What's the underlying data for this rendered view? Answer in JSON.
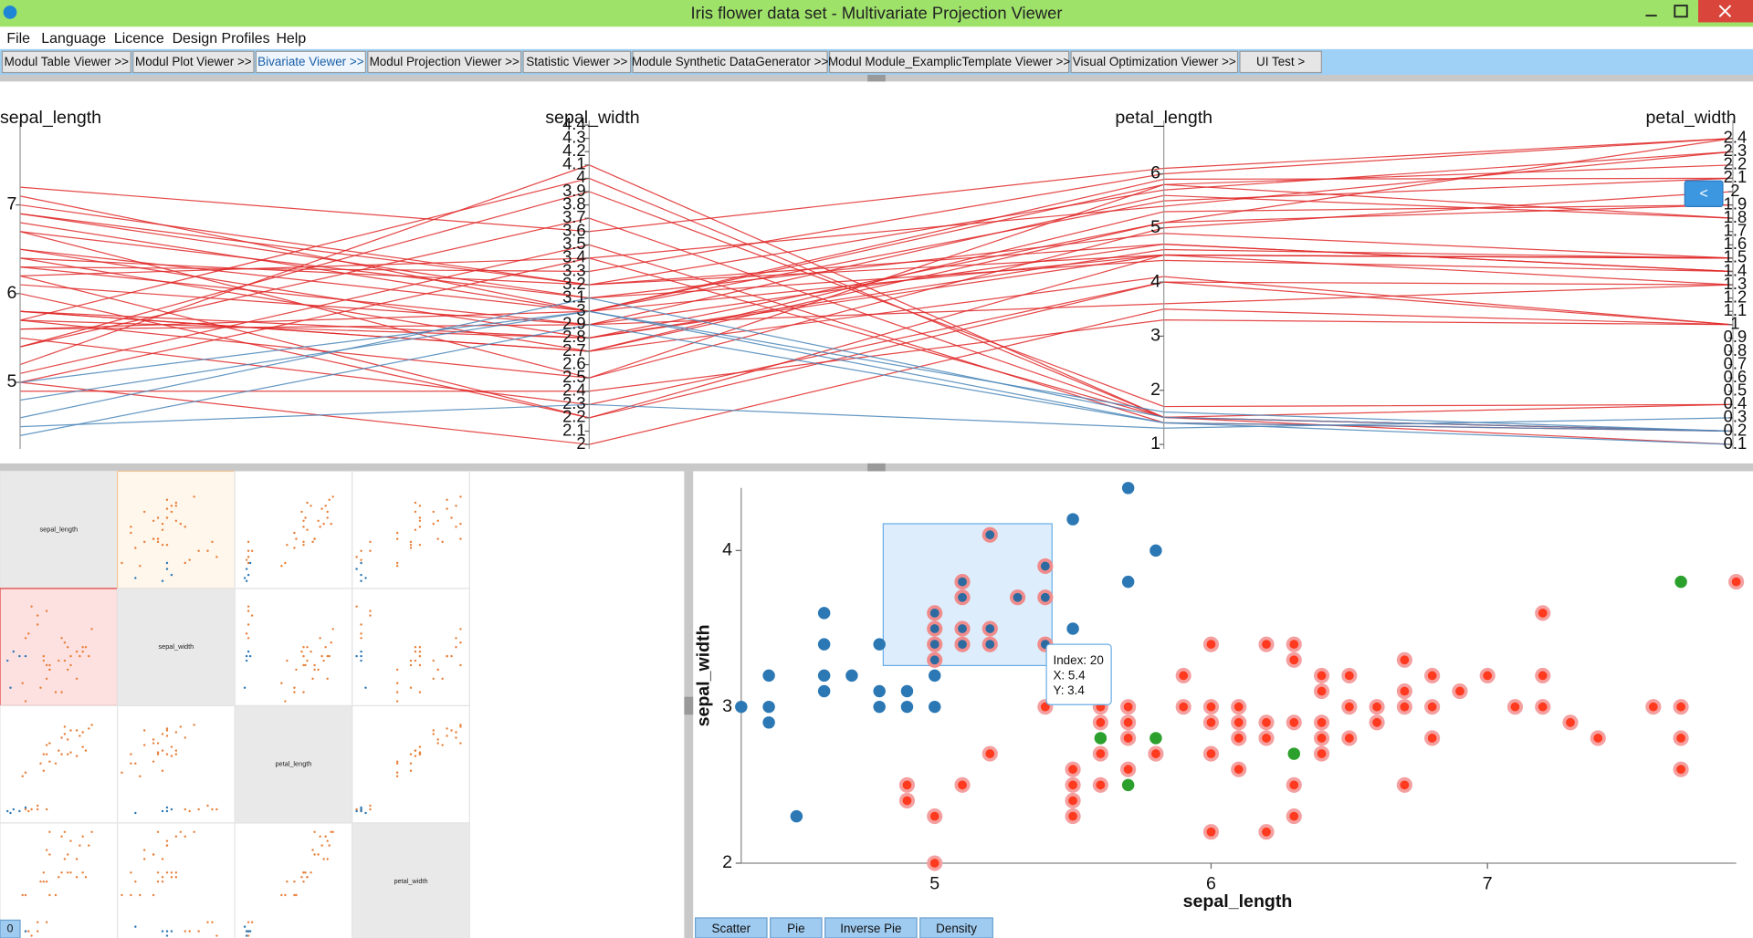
{
  "window": {
    "title": "Iris flower data set - Multivariate Projection Viewer"
  },
  "menu": [
    "File",
    "Language",
    "Licence",
    "Design Profiles",
    "Help"
  ],
  "tabs": [
    "Modul Table Viewer >>",
    "Modul Plot Viewer >>",
    "Bivariate Viewer >>",
    "Modul Projection Viewer >>",
    "Statistic Viewer >>",
    "Module Synthetic DataGenerator >>",
    "Modul Module_ExamplicTemplate Viewer >>",
    "Visual Optimization Viewer >>",
    "UI Test >"
  ],
  "parallel": {
    "type": "parallel",
    "axes": [
      {
        "name": "sepal_length",
        "lim": [
          4.3,
          7.9
        ],
        "ticks": [
          5,
          6,
          7
        ]
      },
      {
        "name": "sepal_width",
        "lim": [
          2,
          4.4
        ],
        "ticks": [
          2,
          2.1,
          2.2,
          2.3,
          2.4,
          2.5,
          2.6,
          2.7,
          2.8,
          2.9,
          3,
          3.1,
          3.2,
          3.3,
          3.4,
          3.5,
          3.6,
          3.7,
          3.8,
          3.9,
          4,
          4.1,
          4.2,
          4.3,
          4.4
        ]
      },
      {
        "name": "petal_length",
        "lim": [
          1,
          6.9
        ],
        "ticks": [
          1,
          2,
          3,
          4,
          5,
          6
        ]
      },
      {
        "name": "petal_width",
        "lim": [
          0.1,
          2.5
        ],
        "ticks": [
          0.1,
          0.2,
          0.3,
          0.4,
          0.5,
          0.6,
          0.7,
          0.8,
          0.9,
          1,
          1.1,
          1.2,
          1.3,
          1.4,
          1.5,
          1.6,
          1.7,
          1.8,
          1.9,
          2,
          2.1,
          2.2,
          2.3,
          2.4
        ]
      }
    ],
    "series": [
      {
        "color": "#e02828",
        "matrix_color": "#e8803a",
        "lines": [
          [
            7.0,
            3.2,
            4.7,
            1.4
          ],
          [
            6.4,
            3.2,
            4.5,
            1.5
          ],
          [
            6.9,
            3.1,
            4.9,
            1.5
          ],
          [
            5.5,
            2.3,
            4.0,
            1.3
          ],
          [
            6.5,
            2.8,
            4.6,
            1.5
          ],
          [
            5.7,
            2.8,
            4.5,
            1.3
          ],
          [
            6.3,
            3.3,
            6.0,
            2.4
          ],
          [
            5.8,
            2.7,
            5.1,
            1.9
          ],
          [
            7.1,
            3.0,
            5.9,
            2.1
          ],
          [
            6.3,
            2.9,
            5.6,
            1.8
          ],
          [
            6.5,
            3.0,
            5.8,
            2.2
          ],
          [
            6.7,
            2.5,
            5.8,
            1.8
          ],
          [
            7.2,
            3.6,
            6.1,
            2.4
          ],
          [
            6.4,
            2.7,
            5.3,
            1.9
          ],
          [
            6.8,
            3.0,
            5.5,
            2.1
          ],
          [
            5.7,
            2.5,
            5.0,
            2.0
          ],
          [
            5.8,
            2.8,
            5.1,
            2.4
          ],
          [
            6.0,
            2.2,
            4.0,
            1.0
          ],
          [
            6.1,
            2.9,
            4.7,
            1.4
          ],
          [
            5.6,
            2.9,
            3.6,
            1.3
          ],
          [
            6.7,
            3.1,
            4.4,
            1.4
          ],
          [
            5.6,
            3.0,
            4.5,
            1.5
          ],
          [
            5.8,
            2.7,
            4.1,
            1.0
          ],
          [
            6.2,
            2.2,
            4.5,
            1.5
          ],
          [
            5.0,
            2.0,
            3.5,
            1.0
          ],
          [
            4.9,
            2.4,
            3.3,
            1.0
          ],
          [
            5.1,
            3.5,
            1.4,
            0.2
          ],
          [
            5.4,
            3.9,
            1.7,
            0.4
          ],
          [
            5.0,
            3.4,
            1.5,
            0.2
          ],
          [
            5.4,
            3.7,
            1.5,
            0.2
          ],
          [
            5.7,
            4.0,
            1.5,
            0.4
          ],
          [
            5.2,
            4.1,
            1.5,
            0.1
          ],
          [
            6.9,
            3.2,
            5.7,
            2.3
          ],
          [
            6.2,
            3.4,
            5.4,
            2.3
          ]
        ]
      },
      {
        "color": "#4a86b8",
        "matrix_color": "#2c78b4",
        "lines": [
          [
            4.6,
            3.1,
            1.5,
            0.2
          ],
          [
            4.4,
            2.9,
            1.4,
            0.2
          ],
          [
            4.8,
            3.0,
            1.4,
            0.1
          ],
          [
            5.0,
            3.0,
            1.6,
            0.2
          ],
          [
            4.5,
            2.3,
            1.3,
            0.3
          ]
        ]
      }
    ]
  },
  "scatter": {
    "type": "scatter",
    "xlabel": "sepal_length",
    "ylabel": "sepal_width",
    "xlim": [
      4.3,
      7.9
    ],
    "ylim": [
      2,
      4.4
    ],
    "xticks": [
      5,
      6,
      7
    ],
    "yticks": [
      2,
      3,
      4
    ],
    "series": [
      {
        "color": "#2c78b4",
        "x": [
          4.3,
          4.4,
          4.4,
          4.4,
          4.5,
          4.6,
          4.6,
          4.6,
          4.6,
          4.7,
          4.8,
          4.8,
          4.8,
          4.9,
          4.9,
          5.0,
          5.0,
          5.5,
          5.7,
          5.8,
          5.7,
          5.5
        ],
        "values": [
          3.0,
          3.2,
          3.0,
          2.9,
          2.3,
          3.6,
          3.4,
          3.2,
          3.1,
          3.2,
          3.4,
          3.1,
          3.0,
          3.1,
          3.0,
          3.2,
          3.0,
          4.2,
          4.4,
          4.0,
          3.8,
          3.5
        ]
      },
      {
        "color": "#2c6aa0",
        "outline": "#f08c8c",
        "x": [
          5.2,
          5.1,
          5.1,
          5.0,
          5.0,
          5.0,
          5.0,
          5.1,
          5.1,
          5.2,
          5.2,
          5.3,
          5.4,
          5.4,
          5.4
        ],
        "values": [
          4.1,
          3.8,
          3.7,
          3.6,
          3.5,
          3.4,
          3.3,
          3.5,
          3.4,
          3.5,
          3.4,
          3.7,
          3.9,
          3.7,
          3.4
        ]
      },
      {
        "color": "#2ca02c",
        "x": [
          7.7,
          5.6,
          5.8,
          5.7,
          6.3
        ],
        "values": [
          3.8,
          2.8,
          2.8,
          2.5,
          2.7
        ]
      },
      {
        "color": "#ff3a1e",
        "outline": "#f4a0a0",
        "x": [
          7.9,
          7.2,
          7.2,
          7.2,
          7.0,
          6.9,
          6.8,
          6.8,
          6.8,
          6.7,
          6.7,
          6.7,
          6.7,
          6.6,
          6.6,
          6.5,
          6.5,
          6.5,
          6.4,
          6.4,
          6.4,
          6.4,
          6.4,
          6.3,
          6.3,
          6.3,
          6.3,
          6.3,
          6.2,
          6.2,
          6.2,
          6.2,
          6.1,
          6.1,
          6.1,
          6.1,
          6.0,
          6.0,
          6.0,
          6.0,
          6.0,
          5.9,
          5.9,
          5.8,
          5.7,
          5.7,
          5.7,
          5.7,
          5.6,
          5.6,
          5.6,
          5.6,
          5.5,
          5.5,
          5.5,
          5.5,
          5.4,
          5.2,
          5.1,
          5.0,
          5.0,
          4.9,
          4.9,
          7.1,
          7.3,
          7.4,
          7.6,
          7.7,
          7.7,
          7.7
        ],
        "values": [
          3.8,
          3.6,
          3.2,
          3.0,
          3.2,
          3.1,
          3.2,
          3.0,
          2.8,
          3.3,
          3.1,
          3.0,
          2.5,
          3.0,
          2.9,
          3.2,
          3.0,
          2.8,
          3.2,
          3.1,
          2.9,
          2.8,
          2.7,
          3.4,
          3.3,
          2.9,
          2.5,
          2.3,
          3.4,
          2.9,
          2.8,
          2.2,
          3.0,
          2.9,
          2.8,
          2.6,
          3.4,
          3.0,
          2.9,
          2.7,
          2.2,
          3.2,
          3.0,
          2.7,
          3.0,
          2.9,
          2.8,
          2.6,
          3.0,
          2.9,
          2.7,
          2.5,
          2.6,
          2.5,
          2.4,
          2.3,
          3.0,
          2.7,
          2.5,
          2.3,
          2.0,
          2.5,
          2.4,
          3.0,
          2.9,
          2.8,
          3.0,
          3.0,
          2.8,
          2.6
        ]
      }
    ]
  },
  "tooltip": [
    "Index: 20",
    "X: 5.4",
    "Y: 3.4"
  ],
  "buttons": [
    "Scatter",
    "Pie",
    "Inverse Pie",
    "Density"
  ],
  "collapse_button": "<",
  "page_indicator": "0"
}
